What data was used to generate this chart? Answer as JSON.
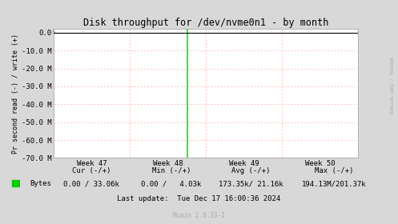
{
  "title": "Disk throughput for /dev/nvme0n1 - by month",
  "ylabel": "Pr second read (-) / write (+)",
  "xlabel_ticks": [
    "Week 47",
    "Week 48",
    "Week 49",
    "Week 50"
  ],
  "ylim": [
    -70000000,
    2000000
  ],
  "yticks": [
    0.0,
    -10000000,
    -20000000,
    -30000000,
    -40000000,
    -50000000,
    -60000000,
    -70000000
  ],
  "ytick_labels": [
    "0.0",
    "-10.0 M",
    "-20.0 M",
    "-30.0 M",
    "-40.0 M",
    "-50.0 M",
    "-60.0 M",
    "-70.0 M"
  ],
  "plot_bg_color": "#ffffff",
  "outer_bg_color": "#d8d8d8",
  "grid_color": "#ffaaaa",
  "spike_color": "#00ee00",
  "line_color": "#000000",
  "border_color": "#aaaaaa",
  "arrow_color": "#aaaacc",
  "legend_color": "#00cc00",
  "legend_label": "Bytes",
  "font_color": "#000000",
  "font_color_light": "#aaaaaa",
  "rrdtool_label": "RRDTOOL / TOBI OETIKER",
  "last_update": "Last update:  Tue Dec 17 16:00:36 2024",
  "munin_version": "Munin 2.0.33-1",
  "stats_line1": "             Cur (-/+)           Min (-/+)           Avg (-/+)                Max (-/+)",
  "stats_line2": "Bytes   0.00 / 33.06k       0.00 /   4.03k    173.35k/ 21.16k      194.13M/201.37k",
  "font_size": 6.5,
  "title_font_size": 8.5
}
